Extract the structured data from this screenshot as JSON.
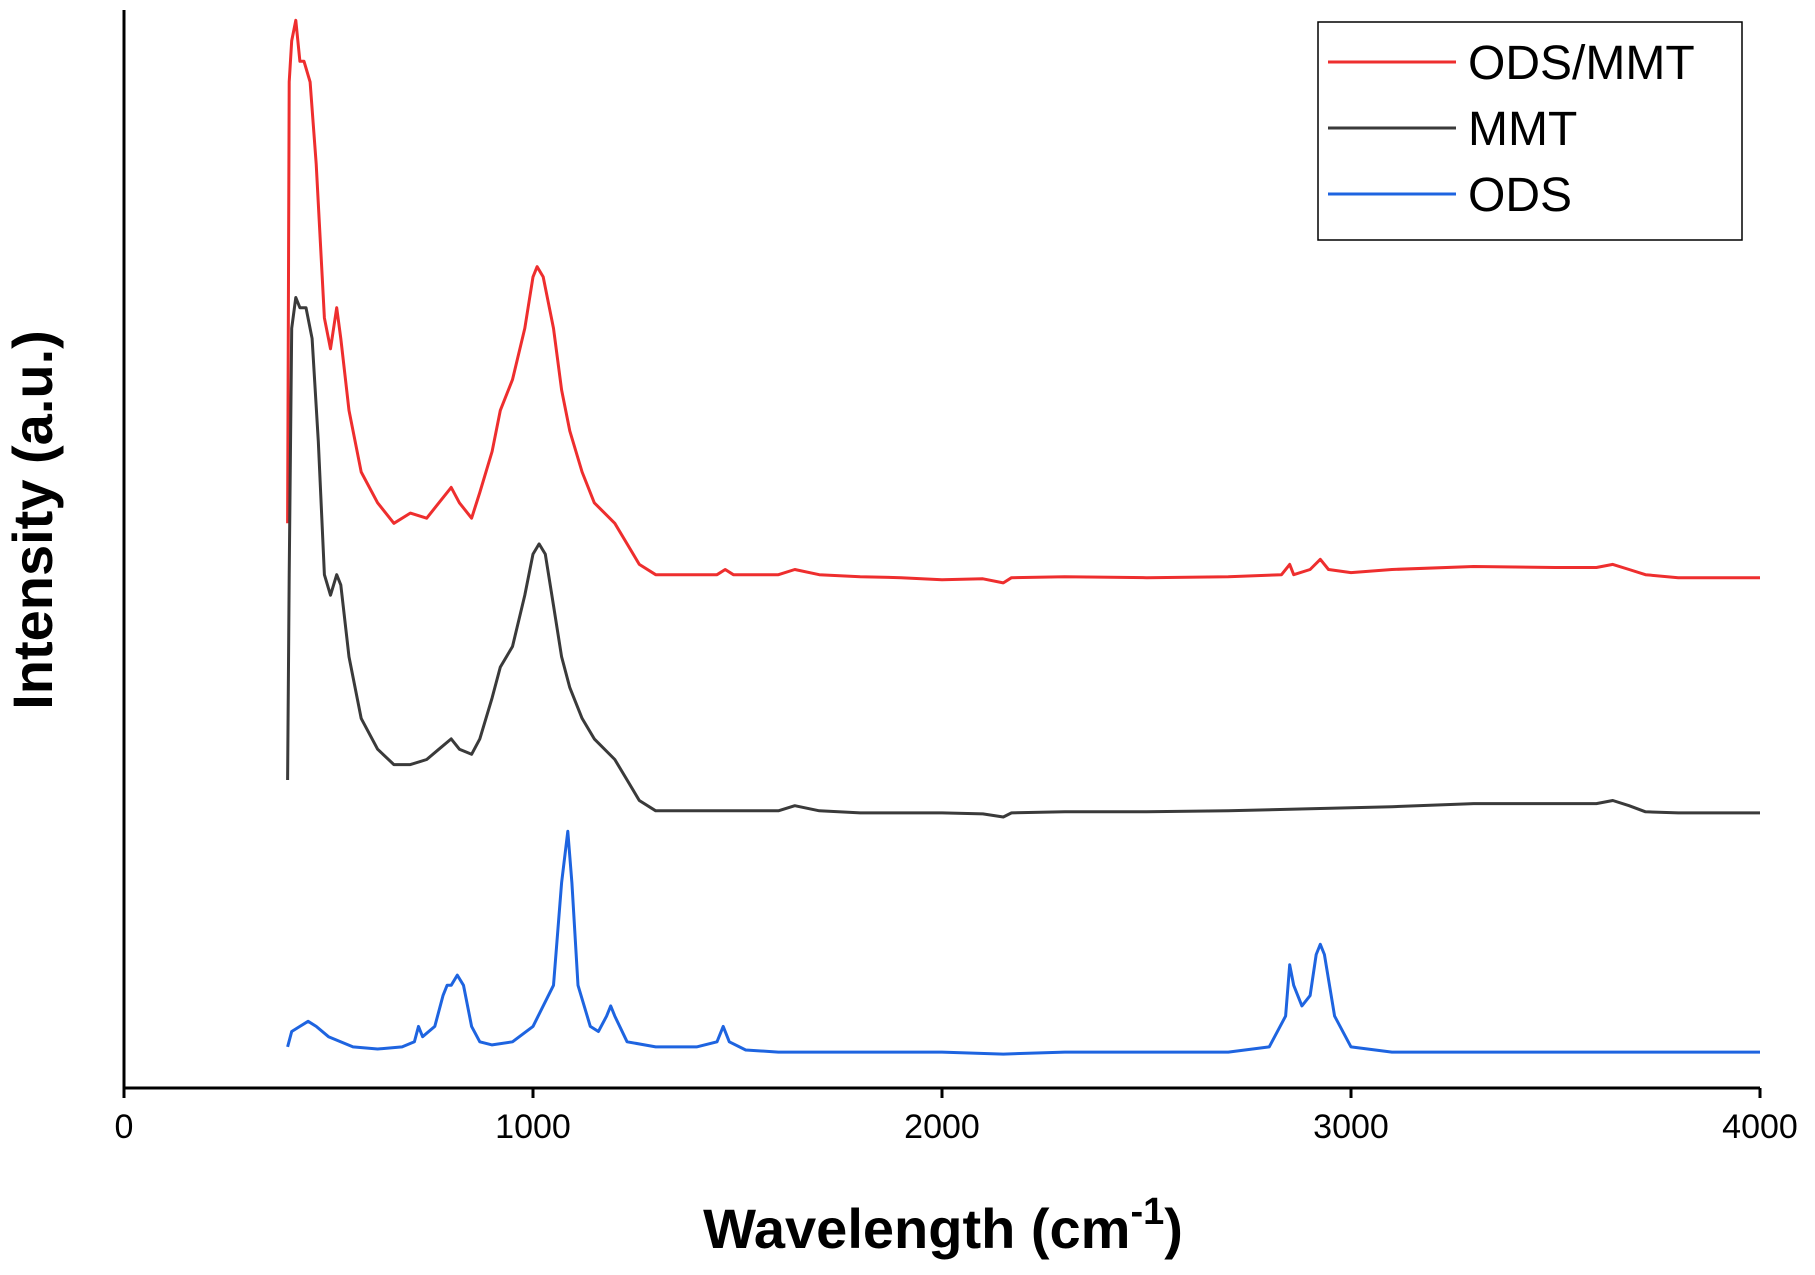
{
  "chart_data": {
    "type": "line",
    "xlabel": "Wavelength (cm",
    "xlabel_sup": "-1",
    "xlabel_close": ")",
    "ylabel": "Intensity (a.u.)",
    "xlim": [
      0,
      4000
    ],
    "ylim": [
      0,
      1.05
    ],
    "xticks": [
      "0",
      "1000",
      "2000",
      "3000",
      "4000"
    ],
    "xtick_values": [
      0,
      1000,
      2000,
      3000,
      4000
    ],
    "grid": false,
    "legend_position": "top-right",
    "series": [
      {
        "name": "ODS/MMT",
        "color": "#ee2e2e",
        "points": [
          [
            400,
            0.55
          ],
          [
            404,
            0.98
          ],
          [
            410,
            1.02
          ],
          [
            420,
            1.04
          ],
          [
            430,
            1.0
          ],
          [
            440,
            1.0
          ],
          [
            455,
            0.98
          ],
          [
            470,
            0.9
          ],
          [
            490,
            0.75
          ],
          [
            505,
            0.72
          ],
          [
            520,
            0.76
          ],
          [
            530,
            0.73
          ],
          [
            550,
            0.66
          ],
          [
            580,
            0.6
          ],
          [
            620,
            0.57
          ],
          [
            660,
            0.55
          ],
          [
            700,
            0.56
          ],
          [
            740,
            0.555
          ],
          [
            770,
            0.57
          ],
          [
            800,
            0.585
          ],
          [
            820,
            0.57
          ],
          [
            850,
            0.555
          ],
          [
            870,
            0.58
          ],
          [
            900,
            0.62
          ],
          [
            920,
            0.66
          ],
          [
            950,
            0.69
          ],
          [
            980,
            0.74
          ],
          [
            1000,
            0.79
          ],
          [
            1010,
            0.8
          ],
          [
            1025,
            0.79
          ],
          [
            1050,
            0.74
          ],
          [
            1070,
            0.68
          ],
          [
            1090,
            0.64
          ],
          [
            1120,
            0.6
          ],
          [
            1150,
            0.57
          ],
          [
            1200,
            0.55
          ],
          [
            1230,
            0.53
          ],
          [
            1260,
            0.51
          ],
          [
            1300,
            0.5
          ],
          [
            1400,
            0.5
          ],
          [
            1450,
            0.5
          ],
          [
            1470,
            0.505
          ],
          [
            1490,
            0.5
          ],
          [
            1600,
            0.5
          ],
          [
            1640,
            0.505
          ],
          [
            1700,
            0.5
          ],
          [
            1800,
            0.498
          ],
          [
            1900,
            0.497
          ],
          [
            2000,
            0.495
          ],
          [
            2100,
            0.496
          ],
          [
            2150,
            0.492
          ],
          [
            2170,
            0.497
          ],
          [
            2300,
            0.498
          ],
          [
            2500,
            0.497
          ],
          [
            2700,
            0.498
          ],
          [
            2830,
            0.5
          ],
          [
            2850,
            0.51
          ],
          [
            2860,
            0.5
          ],
          [
            2900,
            0.505
          ],
          [
            2925,
            0.515
          ],
          [
            2945,
            0.505
          ],
          [
            3000,
            0.502
          ],
          [
            3100,
            0.505
          ],
          [
            3300,
            0.508
          ],
          [
            3500,
            0.507
          ],
          [
            3600,
            0.507
          ],
          [
            3640,
            0.51
          ],
          [
            3680,
            0.505
          ],
          [
            3720,
            0.5
          ],
          [
            3800,
            0.497
          ],
          [
            4000,
            0.497
          ]
        ]
      },
      {
        "name": "MMT",
        "color": "#3a3a3a",
        "points": [
          [
            400,
            0.3
          ],
          [
            404,
            0.5
          ],
          [
            410,
            0.74
          ],
          [
            420,
            0.77
          ],
          [
            430,
            0.76
          ],
          [
            445,
            0.76
          ],
          [
            460,
            0.73
          ],
          [
            475,
            0.63
          ],
          [
            490,
            0.5
          ],
          [
            505,
            0.48
          ],
          [
            520,
            0.5
          ],
          [
            530,
            0.49
          ],
          [
            550,
            0.42
          ],
          [
            580,
            0.36
          ],
          [
            620,
            0.33
          ],
          [
            660,
            0.315
          ],
          [
            700,
            0.315
          ],
          [
            740,
            0.32
          ],
          [
            770,
            0.33
          ],
          [
            800,
            0.34
          ],
          [
            820,
            0.33
          ],
          [
            850,
            0.325
          ],
          [
            870,
            0.34
          ],
          [
            900,
            0.38
          ],
          [
            920,
            0.41
          ],
          [
            950,
            0.43
          ],
          [
            980,
            0.48
          ],
          [
            1000,
            0.52
          ],
          [
            1015,
            0.53
          ],
          [
            1030,
            0.52
          ],
          [
            1050,
            0.47
          ],
          [
            1070,
            0.42
          ],
          [
            1090,
            0.39
          ],
          [
            1120,
            0.36
          ],
          [
            1150,
            0.34
          ],
          [
            1200,
            0.32
          ],
          [
            1230,
            0.3
          ],
          [
            1260,
            0.28
          ],
          [
            1300,
            0.27
          ],
          [
            1400,
            0.27
          ],
          [
            1500,
            0.27
          ],
          [
            1600,
            0.27
          ],
          [
            1640,
            0.275
          ],
          [
            1700,
            0.27
          ],
          [
            1800,
            0.268
          ],
          [
            1900,
            0.268
          ],
          [
            2000,
            0.268
          ],
          [
            2100,
            0.267
          ],
          [
            2150,
            0.264
          ],
          [
            2170,
            0.268
          ],
          [
            2300,
            0.269
          ],
          [
            2500,
            0.269
          ],
          [
            2700,
            0.27
          ],
          [
            2900,
            0.272
          ],
          [
            3100,
            0.274
          ],
          [
            3300,
            0.277
          ],
          [
            3500,
            0.277
          ],
          [
            3600,
            0.277
          ],
          [
            3640,
            0.28
          ],
          [
            3680,
            0.275
          ],
          [
            3720,
            0.269
          ],
          [
            3800,
            0.268
          ],
          [
            4000,
            0.268
          ]
        ]
      },
      {
        "name": "ODS",
        "color": "#1e64e0",
        "points": [
          [
            400,
            0.04
          ],
          [
            410,
            0.055
          ],
          [
            430,
            0.06
          ],
          [
            450,
            0.065
          ],
          [
            470,
            0.06
          ],
          [
            500,
            0.05
          ],
          [
            560,
            0.04
          ],
          [
            620,
            0.038
          ],
          [
            680,
            0.04
          ],
          [
            710,
            0.045
          ],
          [
            720,
            0.06
          ],
          [
            730,
            0.05
          ],
          [
            760,
            0.06
          ],
          [
            780,
            0.09
          ],
          [
            790,
            0.1
          ],
          [
            800,
            0.1
          ],
          [
            815,
            0.11
          ],
          [
            830,
            0.1
          ],
          [
            850,
            0.06
          ],
          [
            870,
            0.045
          ],
          [
            900,
            0.042
          ],
          [
            950,
            0.045
          ],
          [
            1000,
            0.06
          ],
          [
            1050,
            0.1
          ],
          [
            1070,
            0.2
          ],
          [
            1085,
            0.25
          ],
          [
            1095,
            0.2
          ],
          [
            1110,
            0.1
          ],
          [
            1140,
            0.06
          ],
          [
            1160,
            0.055
          ],
          [
            1180,
            0.07
          ],
          [
            1190,
            0.08
          ],
          [
            1200,
            0.07
          ],
          [
            1230,
            0.045
          ],
          [
            1300,
            0.04
          ],
          [
            1400,
            0.04
          ],
          [
            1450,
            0.045
          ],
          [
            1465,
            0.06
          ],
          [
            1480,
            0.045
          ],
          [
            1520,
            0.037
          ],
          [
            1600,
            0.035
          ],
          [
            1800,
            0.035
          ],
          [
            2000,
            0.035
          ],
          [
            2150,
            0.033
          ],
          [
            2300,
            0.035
          ],
          [
            2500,
            0.035
          ],
          [
            2700,
            0.035
          ],
          [
            2800,
            0.04
          ],
          [
            2840,
            0.07
          ],
          [
            2850,
            0.12
          ],
          [
            2860,
            0.1
          ],
          [
            2880,
            0.08
          ],
          [
            2900,
            0.09
          ],
          [
            2915,
            0.13
          ],
          [
            2925,
            0.14
          ],
          [
            2935,
            0.13
          ],
          [
            2960,
            0.07
          ],
          [
            3000,
            0.04
          ],
          [
            3100,
            0.035
          ],
          [
            3500,
            0.035
          ],
          [
            4000,
            0.035
          ]
        ]
      }
    ]
  }
}
